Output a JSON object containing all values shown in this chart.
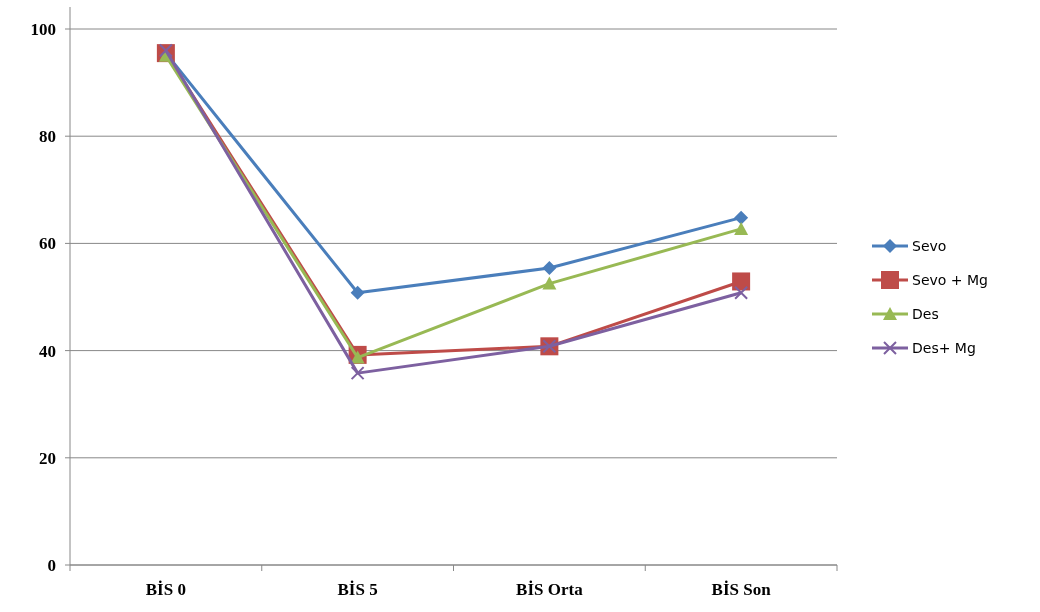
{
  "chart_data": {
    "type": "line",
    "categories": [
      "BİS 0",
      "BİS 5",
      "BİS Orta",
      "BİS Son"
    ],
    "series": [
      {
        "name": "Sevo",
        "color": "#4a7ebb",
        "marker": "diamond",
        "values": [
          95.5,
          50.8,
          55.4,
          64.8
        ]
      },
      {
        "name": "Sevo + Mg",
        "color": "#be4b48",
        "marker": "square",
        "values": [
          95.5,
          39.2,
          40.8,
          52.9
        ]
      },
      {
        "name": "Des",
        "color": "#98b954",
        "marker": "triangle",
        "values": [
          95,
          38.7,
          52.5,
          62.7
        ]
      },
      {
        "name": "Des+ Mg",
        "color": "#7d60a0",
        "marker": "cross",
        "values": [
          96,
          35.8,
          40.8,
          50.8
        ]
      }
    ],
    "ylim": [
      0,
      100
    ],
    "yticks": [
      0,
      20,
      40,
      60,
      80,
      100
    ],
    "grid": "y",
    "legend": "right"
  }
}
